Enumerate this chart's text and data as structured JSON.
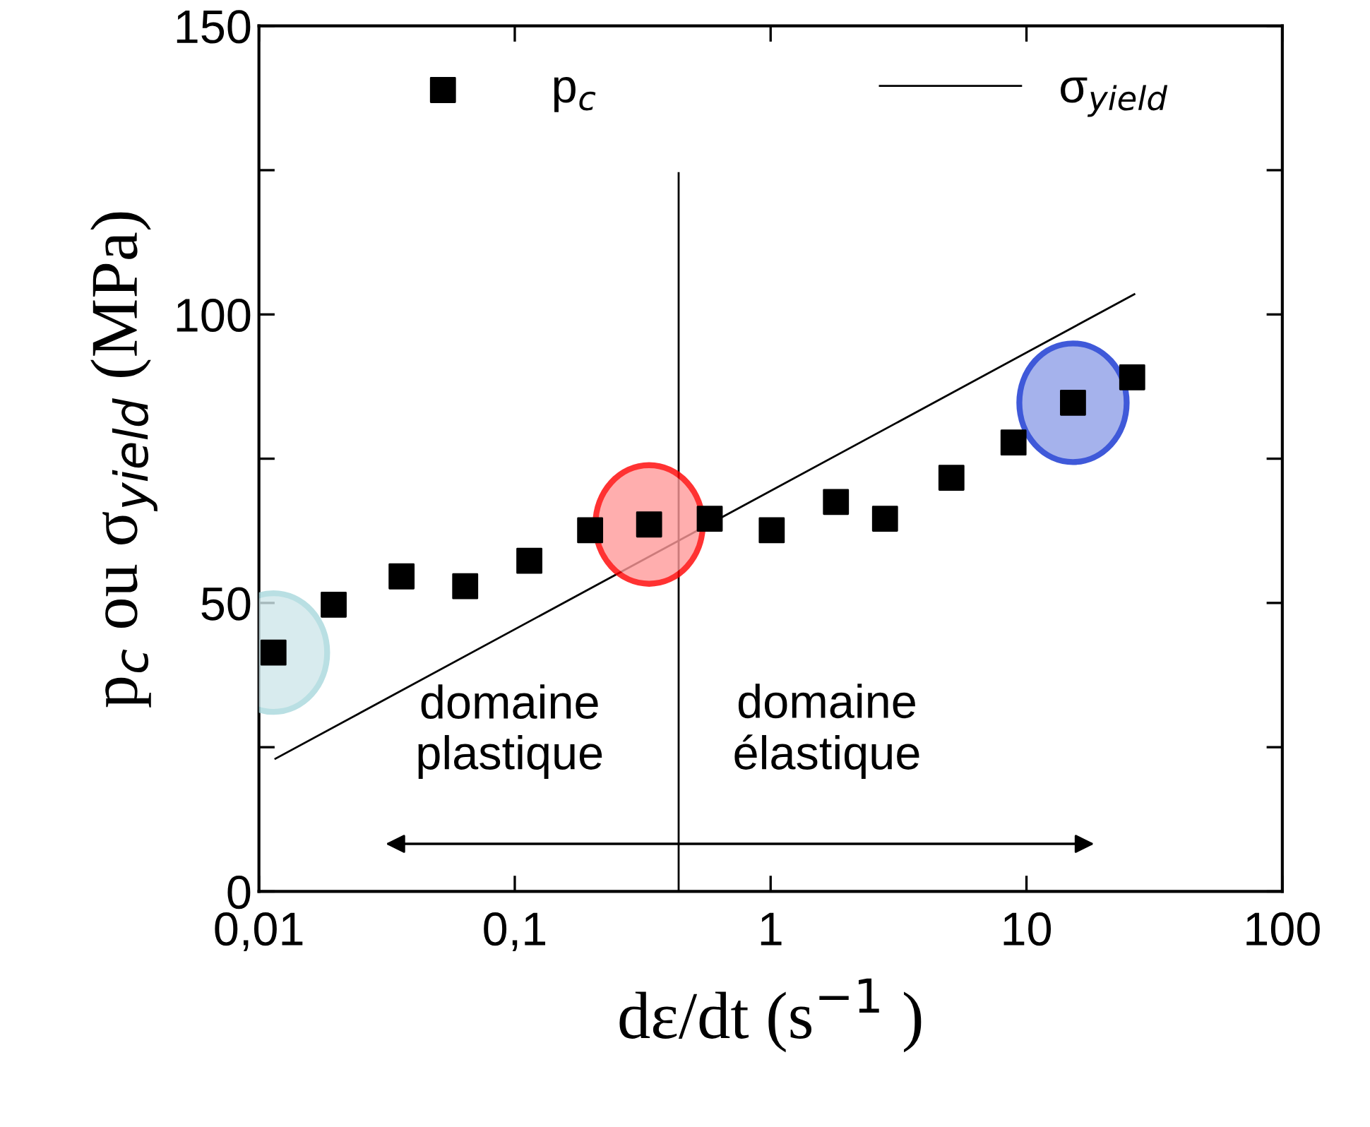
{
  "chart_data": {
    "type": "scatter",
    "xlabel": "dε/dt (s$^{−1}$ )",
    "ylabel": "p$_{c}$ ou σ$_{yield}$ (MPa)",
    "log": "x",
    "xlim": [
      0.01,
      100
    ],
    "xticks": [
      {
        "value": 0.01,
        "label": "0,01"
      },
      {
        "value": 0.1,
        "label": "0,1"
      },
      1,
      10,
      100
    ],
    "ylim": [
      0,
      150
    ],
    "yticks": [
      0,
      {
        "value": 25,
        "label": null
      },
      50,
      {
        "value": 75,
        "label": null
      },
      100,
      {
        "value": 125,
        "label": null
      },
      150
    ],
    "grid": false,
    "legend": "top",
    "marker": "square",
    "series": [
      {
        "name": "p$_{c}$",
        "color": "#000000",
        "x": [
          0.0114,
          0.0196,
          0.0361,
          0.064,
          0.114,
          0.197,
          0.335,
          0.578,
          1.01,
          1.8,
          2.8,
          5.09,
          8.9,
          15.2,
          25.9
        ],
        "values": [
          41.4,
          49.7,
          54.6,
          52.9,
          57.3,
          62.6,
          63.6,
          64.6,
          62.6,
          67.5,
          64.6,
          71.7,
          77.8,
          84.7,
          89.1
        ]
      },
      {
        "name": "σ$_{yield}$",
        "type": "line",
        "color": "#000000",
        "marker": "none",
        "line_style": "solid",
        "x": [
          0.0116,
          26.4
        ],
        "values": [
          23.0,
          103.5
        ]
      }
    ],
    "ref_lines": [
      {
        "axis": "x",
        "value": 0.437,
        "label": null,
        "color": "#000000"
      }
    ],
    "annotations": [
      "domaine\nplastique",
      "domaine\nélastique"
    ]
  }
}
